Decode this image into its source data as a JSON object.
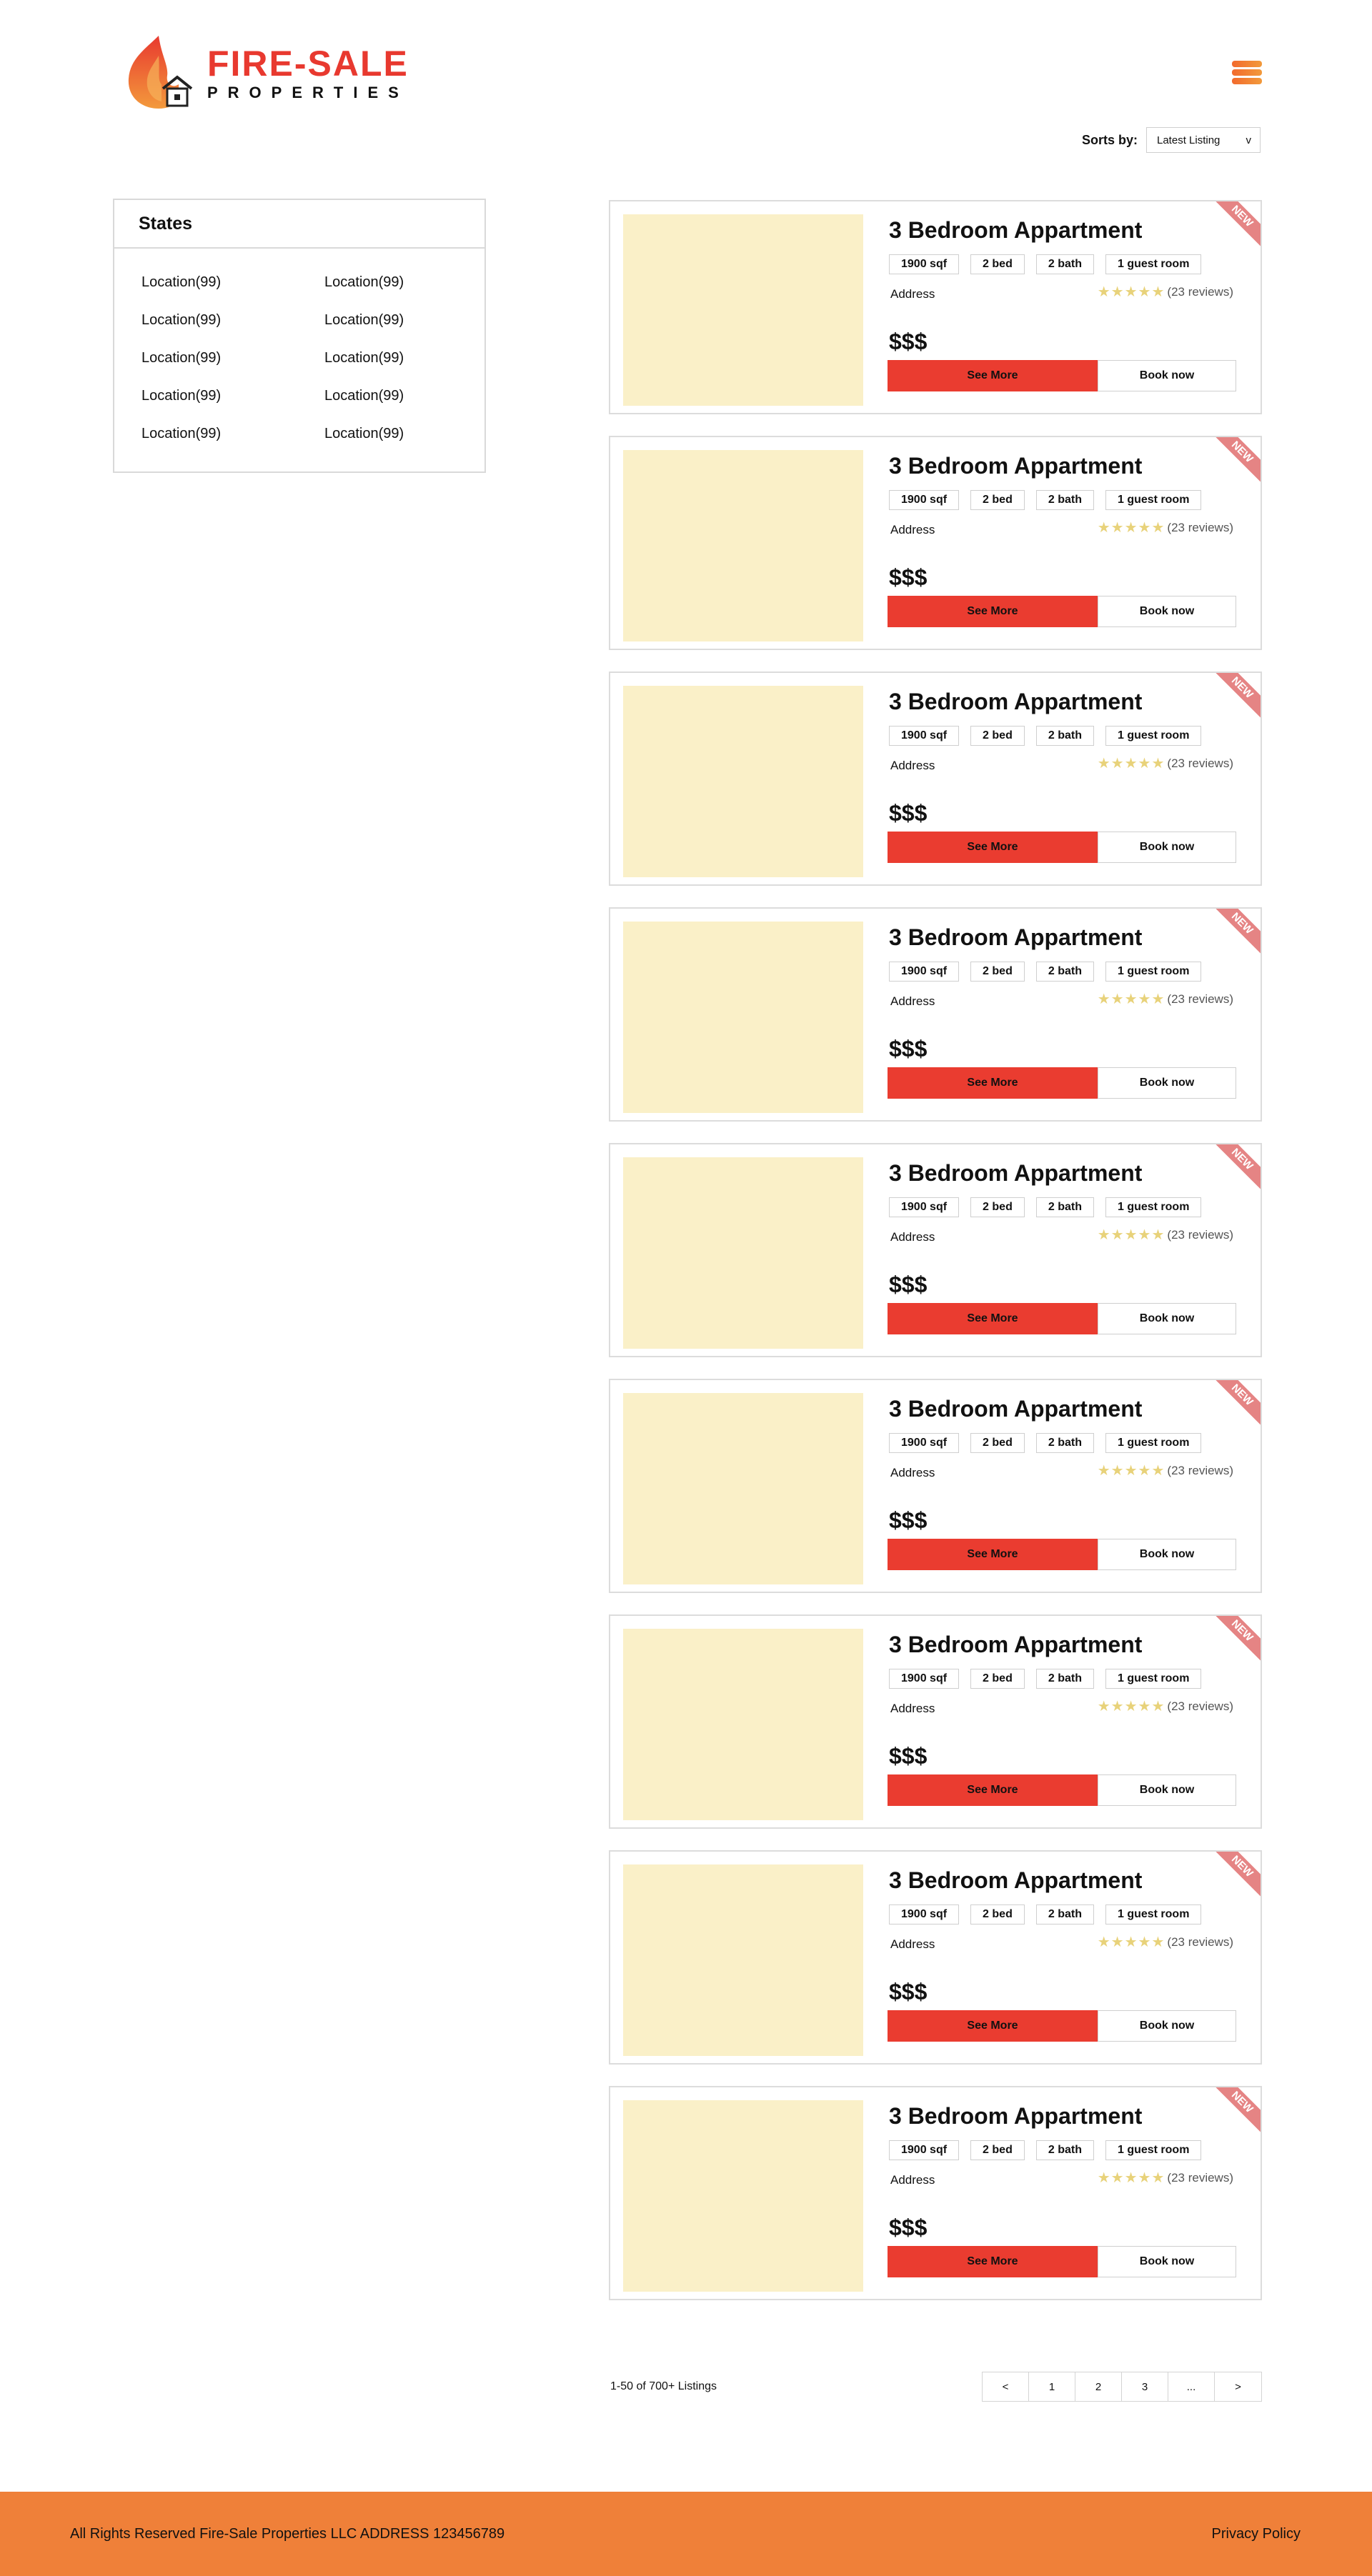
{
  "brand": {
    "title": "FIRE-SALE",
    "subtitle": "PROPERTIES",
    "colors": {
      "primary": "#e8392f",
      "accent": "#ef8039",
      "placeholder": "#faf0c8",
      "badge": "#e58484",
      "star": "#e8d27a"
    }
  },
  "header": {
    "menu_icon": "hamburger-menu-icon"
  },
  "sort": {
    "label": "Sorts by:",
    "selected": "Latest Listing",
    "chevron": "v"
  },
  "sidebar": {
    "title": "States",
    "locations": [
      "Location(99)",
      "Location(99)",
      "Location(99)",
      "Location(99)",
      "Location(99)",
      "Location(99)",
      "Location(99)",
      "Location(99)",
      "Location(99)",
      "Location(99)"
    ]
  },
  "listings": [
    {
      "title": "3 Bedroom Appartment",
      "tags": [
        "1900 sqf",
        "2 bed",
        "2 bath",
        "1 guest room"
      ],
      "address": "Address",
      "rating": 5,
      "reviews": "(23 reviews)",
      "price": "$$$",
      "see_more": "See More",
      "book_now": "Book now",
      "badge": "NEW"
    },
    {
      "title": "3 Bedroom Appartment",
      "tags": [
        "1900 sqf",
        "2 bed",
        "2 bath",
        "1 guest room"
      ],
      "address": "Address",
      "rating": 5,
      "reviews": "(23 reviews)",
      "price": "$$$",
      "see_more": "See More",
      "book_now": "Book now",
      "badge": "NEW"
    },
    {
      "title": "3 Bedroom Appartment",
      "tags": [
        "1900 sqf",
        "2 bed",
        "2 bath",
        "1 guest room"
      ],
      "address": "Address",
      "rating": 5,
      "reviews": "(23 reviews)",
      "price": "$$$",
      "see_more": "See More",
      "book_now": "Book now",
      "badge": "NEW"
    },
    {
      "title": "3 Bedroom Appartment",
      "tags": [
        "1900 sqf",
        "2 bed",
        "2 bath",
        "1 guest room"
      ],
      "address": "Address",
      "rating": 5,
      "reviews": "(23 reviews)",
      "price": "$$$",
      "see_more": "See More",
      "book_now": "Book now",
      "badge": "NEW"
    },
    {
      "title": "3 Bedroom Appartment",
      "tags": [
        "1900 sqf",
        "2 bed",
        "2 bath",
        "1 guest room"
      ],
      "address": "Address",
      "rating": 5,
      "reviews": "(23 reviews)",
      "price": "$$$",
      "see_more": "See More",
      "book_now": "Book now",
      "badge": "NEW"
    },
    {
      "title": "3 Bedroom Appartment",
      "tags": [
        "1900 sqf",
        "2 bed",
        "2 bath",
        "1 guest room"
      ],
      "address": "Address",
      "rating": 5,
      "reviews": "(23 reviews)",
      "price": "$$$",
      "see_more": "See More",
      "book_now": "Book now",
      "badge": "NEW"
    },
    {
      "title": "3 Bedroom Appartment",
      "tags": [
        "1900 sqf",
        "2 bed",
        "2 bath",
        "1 guest room"
      ],
      "address": "Address",
      "rating": 5,
      "reviews": "(23 reviews)",
      "price": "$$$",
      "see_more": "See More",
      "book_now": "Book now",
      "badge": "NEW"
    },
    {
      "title": "3 Bedroom Appartment",
      "tags": [
        "1900 sqf",
        "2 bed",
        "2 bath",
        "1 guest room"
      ],
      "address": "Address",
      "rating": 5,
      "reviews": "(23 reviews)",
      "price": "$$$",
      "see_more": "See More",
      "book_now": "Book now",
      "badge": "NEW"
    },
    {
      "title": "3 Bedroom Appartment",
      "tags": [
        "1900 sqf",
        "2 bed",
        "2 bath",
        "1 guest room"
      ],
      "address": "Address",
      "rating": 5,
      "reviews": "(23 reviews)",
      "price": "$$$",
      "see_more": "See More",
      "book_now": "Book now",
      "badge": "NEW"
    }
  ],
  "pagination": {
    "count_text": "1-50 of 700+ Listings",
    "pages": [
      "<",
      "1",
      "2",
      "3",
      "...",
      ">"
    ]
  },
  "footer": {
    "copyright": "All Rights Reserved Fire-Sale Properties LLC ADDRESS   123456789",
    "privacy": "Privacy Policy"
  }
}
